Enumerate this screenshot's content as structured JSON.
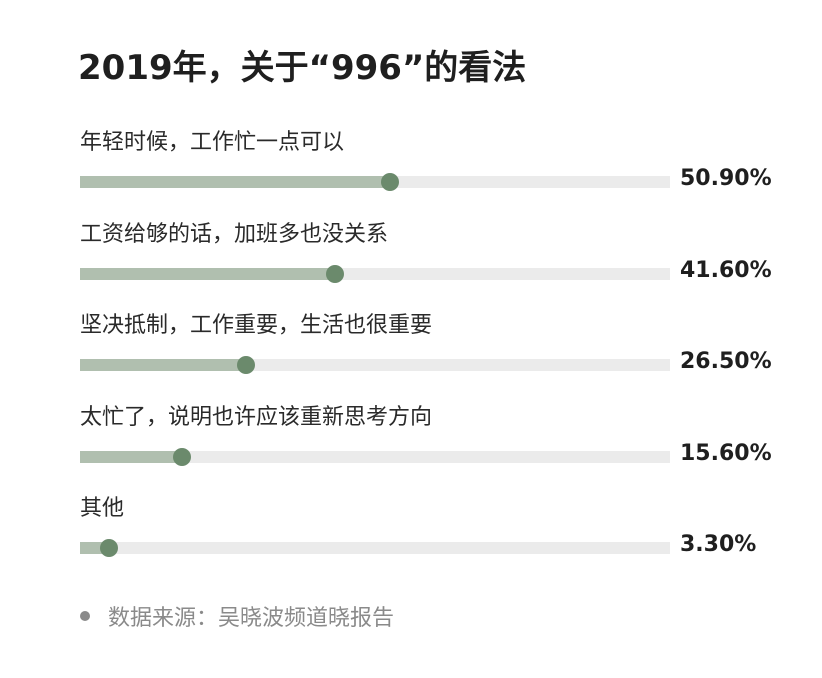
{
  "chart_data": {
    "type": "bar",
    "orientation": "horizontal",
    "title": "2019年，关于“996”的看法",
    "categories": [
      "年轻时候，工作忙一点可以",
      "工资给够的话，加班多也没关系",
      "坚决抵制，工作重要，生活也很重要",
      "太忙了，说明也许应该重新思考方向",
      "其他"
    ],
    "values": [
      50.9,
      41.6,
      26.5,
      15.6,
      3.3
    ],
    "value_labels": [
      "50.90%",
      "41.60%",
      "26.50%",
      "15.60%",
      "3.30%"
    ],
    "xlim": [
      0,
      100
    ],
    "unit": "%",
    "grid": false,
    "legend": "none",
    "colors": {
      "track": "#ebebeb",
      "fill": "#b0bfaf",
      "dot": "#6b8a6c"
    }
  },
  "source": "数据来源：吴晓波频道晓报告"
}
